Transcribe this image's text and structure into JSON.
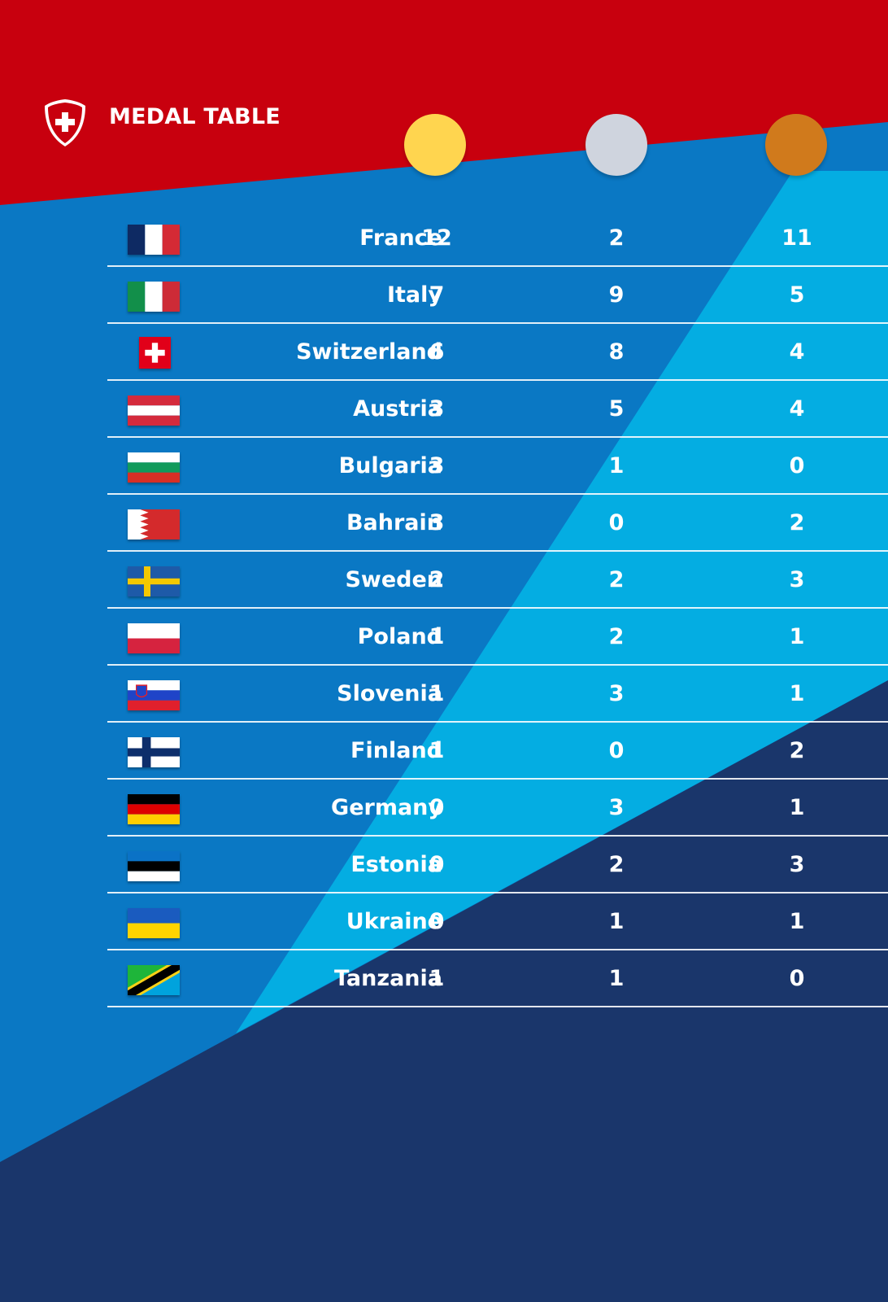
{
  "header": {
    "title": "MEDAL TABLE",
    "logo_icon": "swiss-shield-icon"
  },
  "colors": {
    "header_red": "#c8000e",
    "blue_main": "#0a78c4",
    "blue_light": "#04ade2",
    "navy": "#1a366b",
    "gold": "#ffd54f",
    "silver": "#cfd4de",
    "bronze": "#d07a1c"
  },
  "medal_columns": [
    {
      "name": "gold-medal-icon"
    },
    {
      "name": "silver-medal-icon"
    },
    {
      "name": "bronze-medal-icon"
    }
  ],
  "table": {
    "rows": [
      {
        "flag": "france-flag-icon",
        "country": "France",
        "gold": "12",
        "silver": "2",
        "bronze": "11"
      },
      {
        "flag": "italy-flag-icon",
        "country": "Italy",
        "gold": "7",
        "silver": "9",
        "bronze": "5"
      },
      {
        "flag": "switzerland-flag-icon",
        "country": "Switzerland",
        "gold": "6",
        "silver": "8",
        "bronze": "4"
      },
      {
        "flag": "austria-flag-icon",
        "country": "Austria",
        "gold": "3",
        "silver": "5",
        "bronze": "4"
      },
      {
        "flag": "bulgaria-flag-icon",
        "country": "Bulgaria",
        "gold": "3",
        "silver": "1",
        "bronze": "0"
      },
      {
        "flag": "bahrain-flag-icon",
        "country": "Bahrain",
        "gold": "3",
        "silver": "0",
        "bronze": "2"
      },
      {
        "flag": "sweden-flag-icon",
        "country": "Sweden",
        "gold": "2",
        "silver": "2",
        "bronze": "3"
      },
      {
        "flag": "poland-flag-icon",
        "country": "Poland",
        "gold": "1",
        "silver": "2",
        "bronze": "1"
      },
      {
        "flag": "slovenia-flag-icon",
        "country": "Slovenia",
        "gold": "1",
        "silver": "3",
        "bronze": "1"
      },
      {
        "flag": "finland-flag-icon",
        "country": "Finland",
        "gold": "1",
        "silver": "0",
        "bronze": "2"
      },
      {
        "flag": "germany-flag-icon",
        "country": "Germany",
        "gold": "0",
        "silver": "3",
        "bronze": "1"
      },
      {
        "flag": "estonia-flag-icon",
        "country": "Estonia",
        "gold": "0",
        "silver": "2",
        "bronze": "3"
      },
      {
        "flag": "ukraine-flag-icon",
        "country": "Ukraine",
        "gold": "0",
        "silver": "1",
        "bronze": "1"
      },
      {
        "flag": "tanzania-flag-icon",
        "country": "Tanzania",
        "gold": "1",
        "silver": "1",
        "bronze": "0"
      }
    ]
  }
}
